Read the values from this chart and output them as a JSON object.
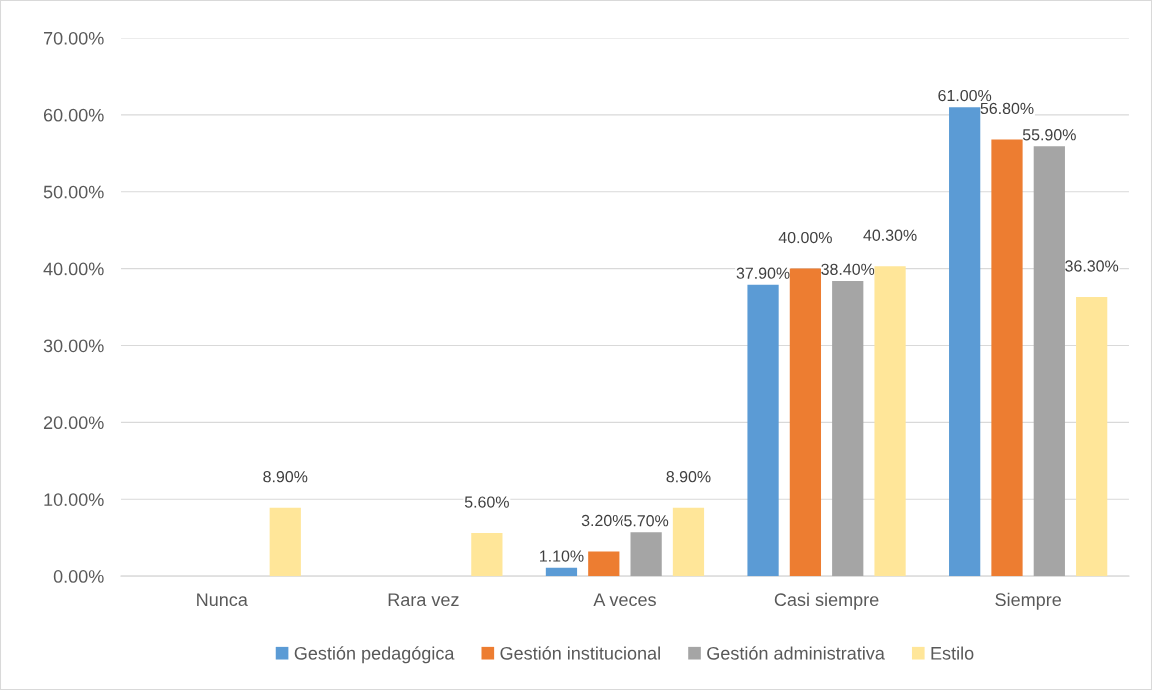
{
  "chart_data": {
    "type": "bar",
    "categories": [
      "Nunca",
      "Rara vez",
      "A veces",
      "Casi siempre",
      "Siempre"
    ],
    "series": [
      {
        "name": "Gestión pedagógica",
        "color": "#5b9bd5",
        "values": [
          null,
          null,
          1.1,
          37.9,
          61.0
        ],
        "value_labels": [
          null,
          null,
          "1.10%",
          "37.90%",
          "61.00%"
        ]
      },
      {
        "name": "Gestión institucional",
        "color": "#ed7d31",
        "values": [
          null,
          null,
          3.2,
          40.0,
          56.8
        ],
        "value_labels": [
          null,
          null,
          "3.20%",
          "40.00%",
          "56.80%"
        ]
      },
      {
        "name": "Gestión administrativa",
        "color": "#a5a5a5",
        "values": [
          null,
          null,
          5.7,
          38.4,
          55.9
        ],
        "value_labels": [
          null,
          null,
          "5.70%",
          "38.40%",
          "55.90%"
        ]
      },
      {
        "name": "Estilo",
        "color": "#ffe699",
        "values": [
          8.9,
          5.6,
          8.9,
          40.3,
          36.3
        ],
        "value_labels": [
          "8.90%",
          "5.60%",
          "8.90%",
          "40.30%",
          "36.30%"
        ]
      }
    ],
    "ylim": [
      0,
      70
    ],
    "yticks": [
      {
        "value": 0,
        "label": "0.00%"
      },
      {
        "value": 10,
        "label": "10.00%"
      },
      {
        "value": 20,
        "label": "20.00%"
      },
      {
        "value": 30,
        "label": "30.00%"
      },
      {
        "value": 40,
        "label": "40.00%"
      },
      {
        "value": 50,
        "label": "50.00%"
      },
      {
        "value": 60,
        "label": "60.00%"
      },
      {
        "value": 70,
        "label": "70.00%"
      }
    ],
    "grid": "y",
    "legend": "bottom"
  }
}
